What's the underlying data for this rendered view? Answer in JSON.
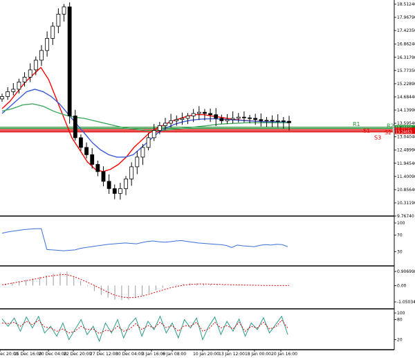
{
  "chart_data": [
    {
      "type": "candlestick",
      "panel": "main",
      "title": "",
      "xlabel": "",
      "ylabel": "",
      "ylim": [
        9.7674,
        18.5124
      ],
      "y_ticks": [
        "18.51240",
        "17.96790",
        "17.42350",
        "16.86240",
        "16.31790",
        "15.77350",
        "15.22890",
        "14.68440",
        "14.13990",
        "13.59540",
        "13.04040",
        "12.48990",
        "11.94540",
        "11.40090",
        "10.85640",
        "10.31190",
        "9.76740"
      ],
      "y_tick_values": [
        18.5124,
        17.9679,
        17.4235,
        16.8624,
        16.3179,
        15.7735,
        15.2289,
        14.6844,
        14.1399,
        13.5954,
        13.0404,
        12.4899,
        11.9454,
        11.4009,
        10.8564,
        10.3119,
        9.7674
      ],
      "x_ticks": [
        "10 Dec 20:00",
        "15 Dec 16:00",
        "20 Dec 04:00",
        "22 Dec 20:00",
        "27 Dec 12:00",
        "30 Dec 04:00",
        "3 Jan 16:00",
        "6 Jan 08:00",
        "10 Jan 20:00",
        "13 Jan 12:00",
        "18 Jan 00:00",
        "20 Jan 16:00"
      ],
      "price_close_series": [
        14.7,
        14.9,
        15.0,
        15.3,
        15.5,
        15.8,
        16.2,
        16.6,
        17.1,
        17.6,
        18.1,
        18.4,
        13.9,
        13.0,
        12.6,
        12.3,
        11.9,
        11.6,
        11.2,
        10.9,
        10.7,
        10.9,
        11.3,
        11.8,
        12.2,
        12.6,
        13.0,
        13.3,
        13.5,
        13.6,
        13.7,
        13.75,
        13.8,
        13.9,
        14.0,
        14.05,
        14.0,
        13.95,
        13.8,
        13.7,
        13.75,
        13.8,
        13.85,
        13.82,
        13.8,
        13.75,
        13.7,
        13.72,
        13.7,
        13.7,
        13.68,
        13.62
      ],
      "overlays": [
        {
          "name": "",
          "color": "#ff0000",
          "values": [
            14.2,
            14.5,
            14.9,
            15.3,
            15.6,
            15.9,
            15.4,
            14.6,
            13.8,
            13.0,
            12.5,
            12.0,
            11.7,
            11.6,
            11.7,
            11.9,
            12.2,
            12.6,
            12.9,
            13.2,
            13.4,
            13.55,
            13.7,
            13.8,
            13.9,
            13.95,
            13.95,
            13.9,
            13.85,
            13.8,
            13.75,
            13.72,
            13.7,
            13.68,
            13.66,
            13.66,
            13.64,
            13.62
          ]
        },
        {
          "name": "",
          "color": "#3a5bd9",
          "values": [
            14.0,
            14.3,
            14.6,
            14.9,
            15.0,
            14.9,
            14.7,
            14.4,
            14.0,
            13.6,
            13.2,
            12.8,
            12.5,
            12.3,
            12.2,
            12.2,
            12.3,
            12.6,
            12.9,
            13.2,
            13.4,
            13.55,
            13.65,
            13.72,
            13.76,
            13.78,
            13.78,
            13.76,
            13.74,
            13.72,
            13.7,
            13.68,
            13.66,
            13.66,
            13.65,
            13.64
          ]
        },
        {
          "name": "",
          "color": "#3faa60",
          "values": [
            14.1,
            14.2,
            14.35,
            14.4,
            14.3,
            14.1,
            13.95,
            13.85,
            13.8,
            13.7,
            13.6,
            13.5,
            13.4,
            13.35,
            13.3,
            13.3,
            13.32,
            13.36,
            13.4,
            13.45,
            13.5,
            13.55,
            13.58,
            13.6,
            13.62,
            13.62,
            13.62,
            13.62,
            13.62
          ]
        }
      ],
      "levels": [
        {
          "label": "R1",
          "value": 13.4321,
          "color": "#1e8e2e",
          "tag": "13.43212"
        },
        {
          "label": "R2",
          "value": 13.3804,
          "color": "#1e8e2e",
          "tag": "13.38041"
        },
        {
          "label": "S1",
          "value": 13.3305,
          "color": "#e00000",
          "tag": "13.33054"
        },
        {
          "label": "S2",
          "value": 13.2841,
          "color": "#e00000",
          "tag": "13.28412"
        },
        {
          "label": "S3",
          "value": 13.2405,
          "color": "#e00000",
          "tag": "13.24053"
        }
      ],
      "grid": false
    },
    {
      "type": "line",
      "panel": "rsi",
      "ylim": [
        0,
        100
      ],
      "y_ticks": [
        "100",
        "70",
        "30"
      ],
      "y_tick_values": [
        100,
        70,
        30
      ],
      "series": [
        {
          "name": "",
          "color": "#3a6fd8",
          "values": [
            75,
            78,
            80,
            82,
            84,
            85,
            86,
            86,
            35,
            34,
            33,
            32,
            33,
            34,
            38,
            40,
            42,
            44,
            46,
            48,
            49,
            50,
            51,
            50,
            49,
            52,
            55,
            56,
            54,
            53,
            54,
            56,
            57,
            55,
            53,
            51,
            50,
            49,
            48,
            47,
            45,
            40,
            46,
            44,
            43,
            42,
            45,
            47,
            46,
            48,
            47,
            42
          ]
        }
      ]
    },
    {
      "type": "bar",
      "panel": "macd",
      "ylim": [
        -1.050345,
        0.906998
      ],
      "y_ticks": [
        "0.906998",
        "0.00",
        "-1.050345"
      ],
      "y_tick_values": [
        0.906998,
        0,
        -1.050345
      ],
      "values": [
        0.12,
        0.2,
        0.28,
        0.36,
        0.46,
        0.56,
        0.66,
        0.76,
        0.84,
        0.9,
        0.6,
        0.3,
        -0.05,
        -0.35,
        -0.6,
        -0.78,
        -0.9,
        -0.94,
        -0.9,
        -0.8,
        -0.65,
        -0.48,
        -0.3,
        -0.15,
        -0.02,
        0.06,
        0.12,
        0.14,
        0.13,
        0.11,
        0.09,
        0.07,
        0.05,
        0.04,
        0.03,
        0.02,
        0.01,
        0.0,
        0.0,
        -0.01,
        -0.01,
        0.0
      ],
      "series": [
        {
          "name": "",
          "color": "#e00000",
          "values": [
            0.05,
            0.12,
            0.2,
            0.28,
            0.36,
            0.45,
            0.54,
            0.62,
            0.68,
            0.72,
            0.62,
            0.45,
            0.25,
            0.05,
            -0.18,
            -0.4,
            -0.6,
            -0.72,
            -0.78,
            -0.76,
            -0.68,
            -0.55,
            -0.42,
            -0.28,
            -0.15,
            -0.05,
            0.03,
            0.08,
            0.1,
            0.1,
            0.09,
            0.08,
            0.06,
            0.05,
            0.04,
            0.03,
            0.02,
            0.01,
            0.01,
            0.0,
            0.0,
            0.0
          ]
        }
      ]
    },
    {
      "type": "line",
      "panel": "stochastic",
      "ylim": [
        0,
        100
      ],
      "y_ticks": [
        "100",
        "80",
        "20"
      ],
      "y_tick_values": [
        100,
        80,
        20
      ],
      "series": [
        {
          "name": "",
          "color": "#2b9a8a",
          "values": [
            82,
            60,
            85,
            45,
            88,
            55,
            90,
            40,
            60,
            30,
            70,
            20,
            50,
            80,
            35,
            60,
            15,
            70,
            40,
            80,
            25,
            65,
            85,
            30,
            75,
            50,
            90,
            40,
            70,
            25,
            80,
            55,
            85,
            20,
            60,
            88,
            35,
            75,
            45,
            82,
            30,
            70,
            50,
            86,
            40,
            65,
            90,
            35
          ]
        },
        {
          "name": "",
          "color": "#e00000",
          "values": [
            70,
            68,
            72,
            60,
            75,
            65,
            78,
            58,
            55,
            45,
            52,
            40,
            45,
            60,
            50,
            52,
            38,
            48,
            45,
            60,
            45,
            52,
            68,
            50,
            62,
            55,
            72,
            56,
            62,
            45,
            62,
            60,
            72,
            45,
            52,
            72,
            55,
            62,
            52,
            72,
            45,
            60,
            55,
            72,
            52,
            58,
            78,
            55
          ]
        }
      ]
    }
  ]
}
